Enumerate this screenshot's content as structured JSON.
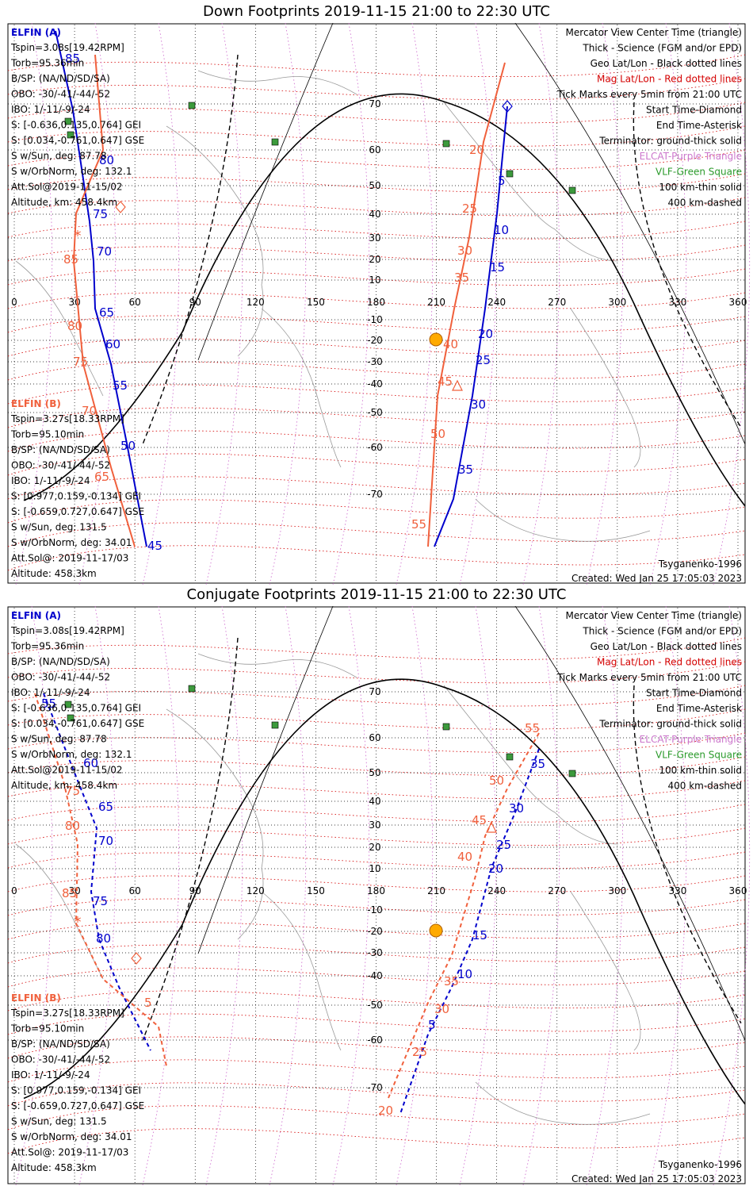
{
  "panels": [
    {
      "id": "down",
      "title": "Down Footprints 2019-11-15 21:00 to 22:30 UTC",
      "elfin_a_header": "ELFIN (A)",
      "elfin_a_lines": [
        "Tspin=3.08s[19.42RPM]",
        "Torb=95.36min",
        "B/SP: (NA/ND/SD/SA)",
        "OBO: -30/-41/-44/-52",
        "IBO: 1/-11/-9/-24",
        "S: [-0.636,0.135,0.764] GEI",
        "S: [0.034,-0.761,0.647] GSE",
        "S w/Sun, deg: 87.78",
        "S w/OrbNorm, deg: 132.1",
        "Att.Sol@2019-11-15/02",
        "Altitude, km: 458.4km"
      ],
      "elfin_b_header": "ELFIN (B)",
      "elfin_b_lines": [
        "Tspin=3.27s[18.33RPM]",
        "Torb=95.10min",
        "B/SP: (NA/ND/SD/SA)",
        "OBO: -30/-41/-44/-52",
        "IBO: 1/-11/-9/-24",
        "S: [0.977,0.159,-0.134] GEI",
        "S: [-0.659,0.727,0.647] GSE",
        "S w/Sun, deg: 131.5",
        "S w/OrbNorm, deg: 34.01",
        "Att.Sol@: 2019-11-17/03",
        "Altitude: 458.3km"
      ],
      "track_a_labels": [
        "85",
        "80",
        "75",
        "70",
        "65",
        "60",
        "55",
        "50",
        "45",
        "5",
        "10",
        "15",
        "20",
        "25",
        "30",
        "35"
      ],
      "track_b_labels": [
        "85",
        "80",
        "75",
        "70",
        "65",
        "20",
        "25",
        "30",
        "35",
        "40",
        "45",
        "50",
        "55"
      ]
    },
    {
      "id": "conjugate",
      "title": "Conjugate Footprints 2019-11-15 21:00 to 22:30 UTC",
      "elfin_a_header": "ELFIN (A)",
      "elfin_a_lines": [
        "Tspin=3.08s[19.42RPM]",
        "Torb=95.36min",
        "B/SP: (NA/ND/SD/SA)",
        "OBO: -30/-41/-44/-52",
        "IBO: 1/-11/-9/-24",
        "S: [-0.636,0.135,0.764] GEI",
        "S: [0.034,-0.761,0.647] GSE",
        "S w/Sun, deg: 87.78",
        "S w/OrbNorm, deg: 132.1",
        "Att.Sol@2019-11-15/02",
        "Altitude, km: 458.4km"
      ],
      "elfin_b_header": "ELFIN (B)",
      "elfin_b_lines": [
        "Tspin=3.27s[18.33RPM]",
        "Torb=95.10min",
        "B/SP: (NA/ND/SD/SA)",
        "OBO: -30/-41/-44/-52",
        "IBO: 1/-11/-9/-24",
        "S: [0.977,0.159,-0.134] GEI",
        "S: [-0.659,0.727,0.647] GSE",
        "S w/Sun, deg: 131.5",
        "S w/OrbNorm, deg: 34.01",
        "Att.Sol@: 2019-11-17/03",
        "Altitude: 458.3km"
      ],
      "track_a_labels": [
        "55",
        "60",
        "65",
        "70",
        "75",
        "80",
        "5",
        "10",
        "15",
        "20",
        "25",
        "30",
        "35"
      ],
      "track_b_labels": [
        "85",
        "80",
        "75",
        "5",
        "20",
        "25",
        "30",
        "35",
        "40",
        "45",
        "50",
        "55"
      ]
    }
  ],
  "legend": [
    "Mercator View Center Time (triangle)",
    "Thick - Science (FGM and/or EPD)",
    "Geo Lat/Lon - Black dotted lines",
    "Mag Lat/Lon - Red dotted lines",
    "Tick Marks every 5min from 21:00 UTC",
    "Start Time-Diamond",
    "End Time-Asterisk",
    "Terminator: ground-thick solid",
    "ELCAT-Purple Triangle",
    "VLF-Green Square",
    "100 km-thin solid",
    "400 km-dashed"
  ],
  "legend_colors": [
    "#000000",
    "#000000",
    "#000000",
    "#d40000",
    "#000000",
    "#000000",
    "#000000",
    "#000000",
    "#cc77cc",
    "#2a9a2a",
    "#000000",
    "#000000"
  ],
  "model": "Tsyganenko-1996",
  "created": "Created: Wed Jan 25 17:05:03 2023",
  "lon_ticks": [
    "0",
    "30",
    "60",
    "90",
    "120",
    "150",
    "180",
    "210",
    "240",
    "270",
    "300",
    "330",
    "360"
  ],
  "lat_ticks": [
    "70",
    "60",
    "50",
    "40",
    "30",
    "20",
    "10",
    "-10",
    "-20",
    "-30",
    "-40",
    "-50",
    "-60",
    "-70"
  ],
  "colors": {
    "elfin_a": "#0000cc",
    "elfin_b": "#f0603c",
    "mag_grid": "#d40000",
    "geo_grid": "#000000",
    "sun": "#ffaa00",
    "vlf": "#3c9a3c"
  }
}
